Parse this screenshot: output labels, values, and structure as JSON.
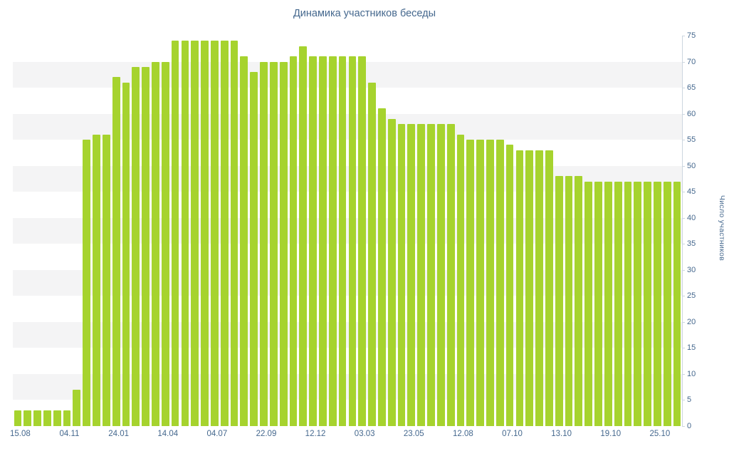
{
  "chart_data": {
    "type": "bar",
    "title": "Динамика участников беседы",
    "xlabel": "",
    "ylabel": "Число участников",
    "x_tick_labels": [
      "15.08",
      "04.11",
      "24.01",
      "14.04",
      "04.07",
      "22.09",
      "12.12",
      "03.03",
      "23.05",
      "12.08",
      "07.10",
      "13.10",
      "19.10",
      "25.10"
    ],
    "x_ticks_every_n_bars": 5,
    "values": [
      3,
      3,
      3,
      3,
      3,
      3,
      7,
      55,
      56,
      56,
      67,
      66,
      69,
      69,
      70,
      70,
      74,
      74,
      74,
      74,
      74,
      74,
      74,
      71,
      68,
      70,
      70,
      70,
      71,
      73,
      71,
      71,
      71,
      71,
      71,
      71,
      66,
      61,
      59,
      58,
      58,
      58,
      58,
      58,
      58,
      56,
      55,
      55,
      55,
      55,
      54,
      53,
      53,
      53,
      53,
      48,
      48,
      48,
      47,
      47,
      47,
      47,
      47,
      47,
      47,
      47,
      47,
      47
    ],
    "ylim": [
      0,
      75
    ],
    "y_ticks": [
      0,
      5,
      10,
      15,
      20,
      25,
      30,
      35,
      40,
      45,
      50,
      55,
      60,
      65,
      70,
      75
    ],
    "y_tick_step": 5,
    "legend": "none",
    "grid": "alternating horizontal bands",
    "colors": {
      "bar": "#a6d32e",
      "band": "#f4f4f5",
      "text": "#45688e",
      "axis": "#ccd6df"
    }
  }
}
